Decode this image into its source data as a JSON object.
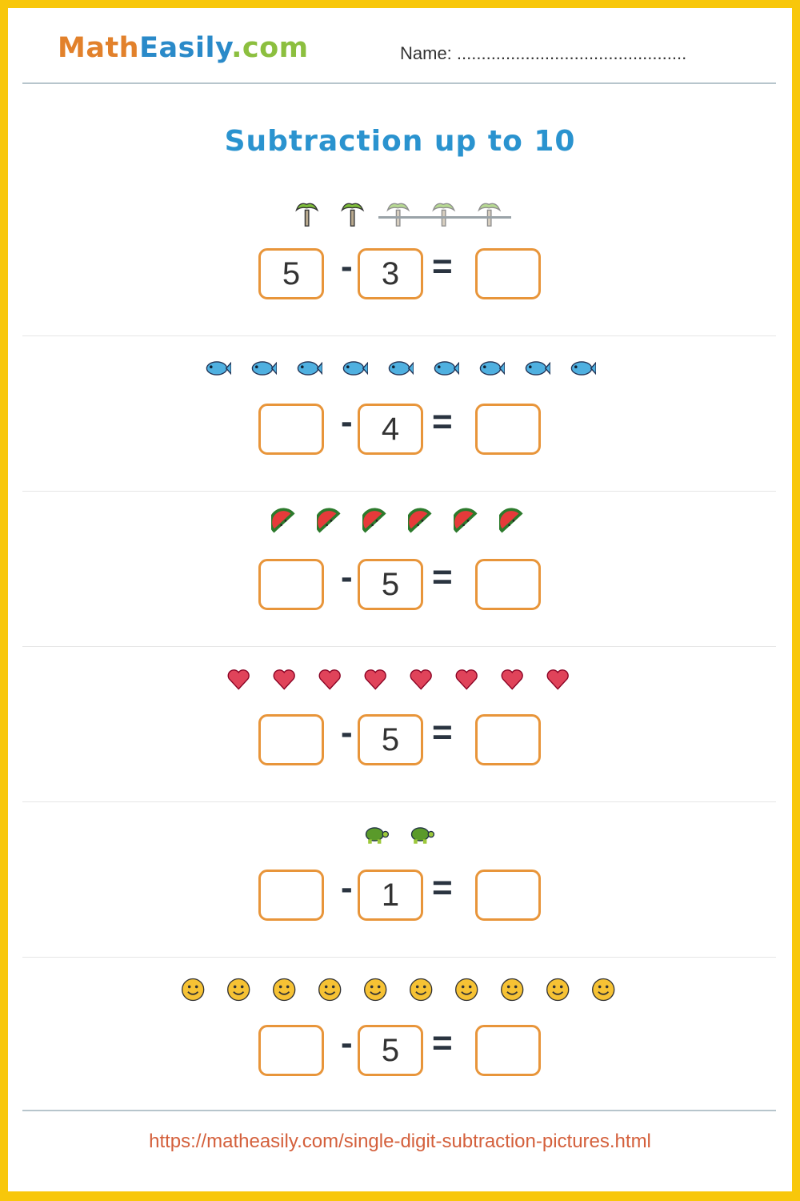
{
  "header": {
    "logo": {
      "part1": "Math",
      "part2": "Easily",
      "part3": ".com"
    },
    "name_label": "Name: ..............................................."
  },
  "title": "Subtraction up to 10",
  "problems": [
    {
      "icon": "palm-tree",
      "count": 5,
      "crossed": 3,
      "minuend": "5",
      "subtrahend": "3",
      "answer": ""
    },
    {
      "icon": "fish",
      "count": 9,
      "crossed": 0,
      "minuend": "",
      "subtrahend": "4",
      "answer": ""
    },
    {
      "icon": "watermelon",
      "count": 6,
      "crossed": 0,
      "minuend": "",
      "subtrahend": "5",
      "answer": ""
    },
    {
      "icon": "heart",
      "count": 8,
      "crossed": 0,
      "minuend": "",
      "subtrahend": "5",
      "answer": ""
    },
    {
      "icon": "turtle",
      "count": 2,
      "crossed": 0,
      "minuend": "",
      "subtrahend": "1",
      "answer": ""
    },
    {
      "icon": "smiley",
      "count": 10,
      "crossed": 0,
      "minuend": "",
      "subtrahend": "5",
      "answer": ""
    }
  ],
  "operators": {
    "minus": "-",
    "equals": "="
  },
  "footer_url": "https://matheasily.com/single-digit-subtraction-pictures.html",
  "colors": {
    "border": "#f8c70a",
    "box": "#e8953a",
    "title": "#2a93cf",
    "url": "#d4603c"
  }
}
